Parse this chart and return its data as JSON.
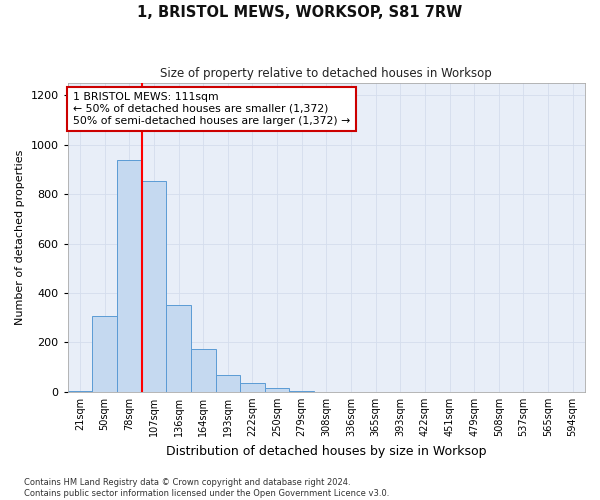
{
  "title": "1, BRISTOL MEWS, WORKSOP, S81 7RW",
  "subtitle": "Size of property relative to detached houses in Worksop",
  "xlabel": "Distribution of detached houses by size in Worksop",
  "ylabel": "Number of detached properties",
  "bar_labels": [
    "21sqm",
    "50sqm",
    "78sqm",
    "107sqm",
    "136sqm",
    "164sqm",
    "193sqm",
    "222sqm",
    "250sqm",
    "279sqm",
    "308sqm",
    "336sqm",
    "365sqm",
    "393sqm",
    "422sqm",
    "451sqm",
    "479sqm",
    "508sqm",
    "537sqm",
    "565sqm",
    "594sqm"
  ],
  "bar_values": [
    5,
    305,
    940,
    855,
    350,
    175,
    70,
    35,
    15,
    3,
    1,
    0,
    0,
    0,
    0,
    0,
    0,
    0,
    0,
    0,
    0
  ],
  "bar_color": "#c5d9f0",
  "bar_edge_color": "#5b9bd5",
  "red_line_index": 3,
  "annotation_text": "1 BRISTOL MEWS: 111sqm\n← 50% of detached houses are smaller (1,372)\n50% of semi-detached houses are larger (1,372) →",
  "annotation_box_color": "#ffffff",
  "annotation_box_edge_color": "#cc0000",
  "ylim": [
    0,
    1250
  ],
  "yticks": [
    0,
    200,
    400,
    600,
    800,
    1000,
    1200
  ],
  "footer_text": "Contains HM Land Registry data © Crown copyright and database right 2024.\nContains public sector information licensed under the Open Government Licence v3.0.",
  "grid_color": "#d4dded",
  "background_color": "#e8eef8"
}
